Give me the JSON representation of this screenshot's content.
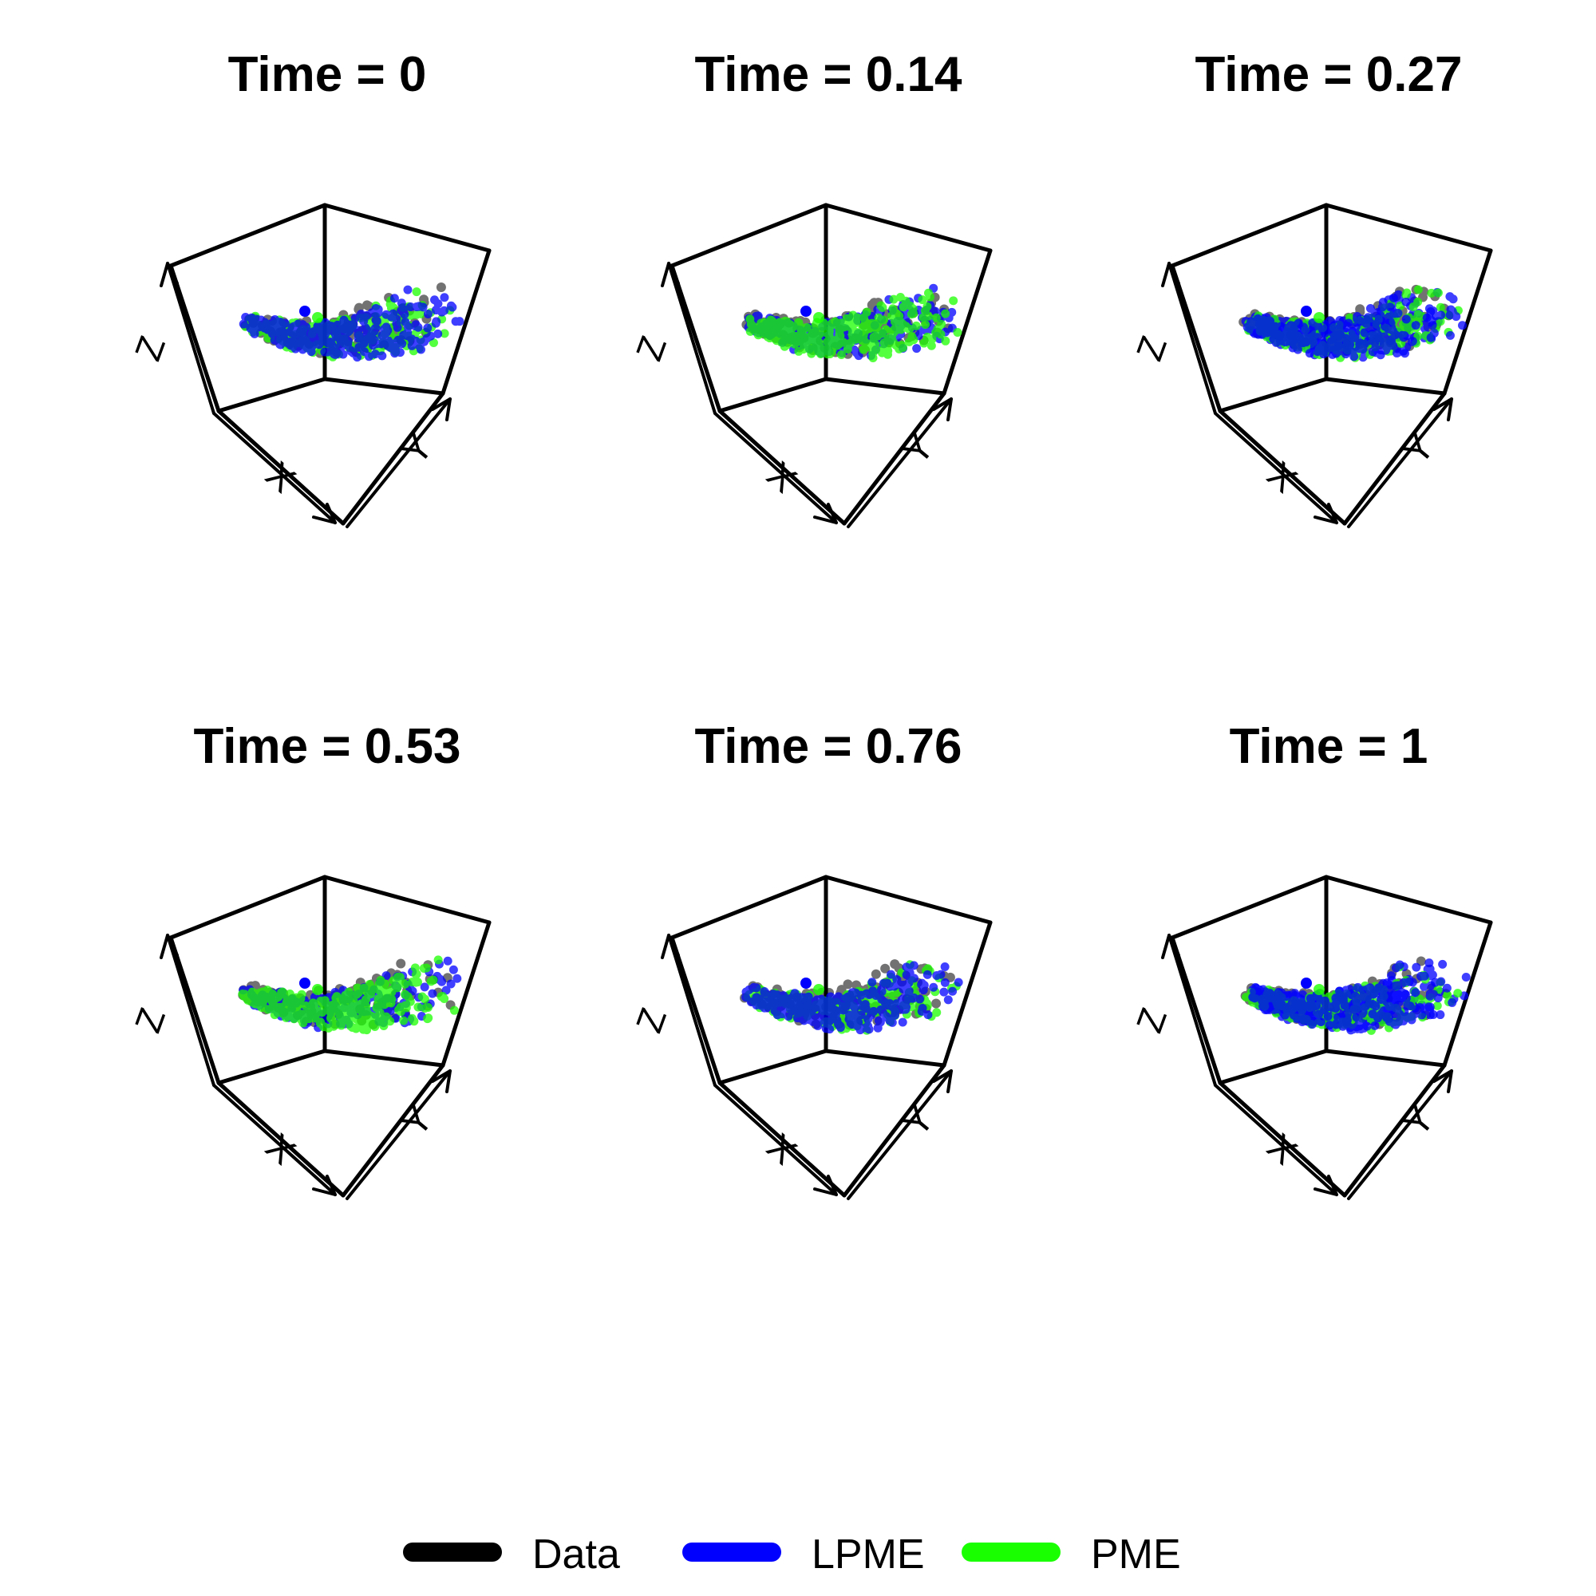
{
  "chart_data": {
    "type": "scatter",
    "subtype": "3d-point-cloud-panels",
    "axes": {
      "x": "X",
      "y": "Y",
      "z": "Z"
    },
    "panels": [
      {
        "title": "Time = 0",
        "time": 0,
        "dominant_series": "LPME"
      },
      {
        "title": "Time = 0.14",
        "time": 0.14,
        "dominant_series": "PME"
      },
      {
        "title": "Time = 0.27",
        "time": 0.27,
        "dominant_series": "mixed"
      },
      {
        "title": "Time = 0.53",
        "time": 0.53,
        "dominant_series": "PME"
      },
      {
        "title": "Time = 0.76",
        "time": 0.76,
        "dominant_series": "LPME"
      },
      {
        "title": "Time = 1",
        "time": 1,
        "dominant_series": "mixed"
      }
    ],
    "legend": {
      "placement": "bottom",
      "entries": [
        {
          "label": "Data",
          "color": "#000000"
        },
        {
          "label": "LPME",
          "color": "#0000ff"
        },
        {
          "label": "PME",
          "color": "#1aff00"
        }
      ]
    },
    "grid": false
  },
  "colors": {
    "data": "#000000",
    "lpme": "#0000ff",
    "pme": "#1aff00",
    "axis": "#000000"
  }
}
